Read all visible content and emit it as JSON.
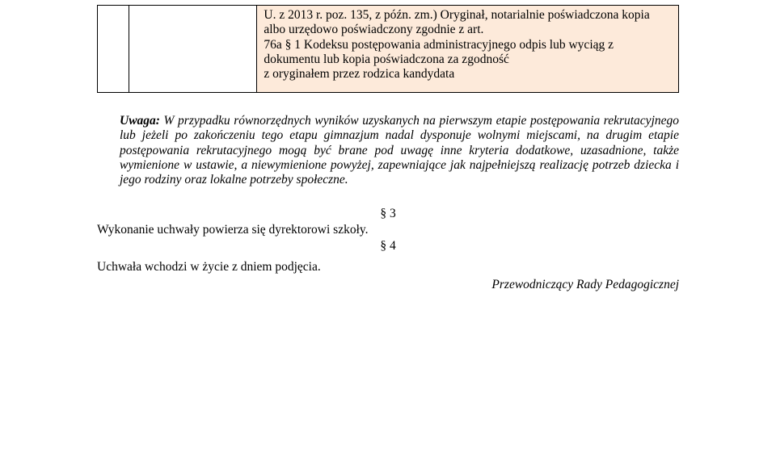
{
  "table": {
    "background_color": "#fdeada",
    "border_color": "#000000",
    "cell_text_p1": "U. z 2013 r. poz. 135, z późn. zm.)  Oryginał, notarialnie poświadczona kopia albo urzędowo poświadczony zgodnie z art.",
    "cell_text_p2": "76a § 1 Kodeksu postępowania administracyjnego odpis lub wyciąg z dokumentu lub kopia poświadczona za zgodność",
    "cell_text_p3": "z oryginałem przez rodzica kandydata"
  },
  "note": {
    "prefix_bold": "Uwaga:",
    "body": " W przypadku równorzędnych wyników uzyskanych na pierwszym etapie postępowania rekrutacyjnego lub jeżeli po zakończeniu tego etapu gimnazjum nadal dysponuje wolnymi miejscami, na drugim etapie postępowania rekrutacyjnego mogą być brane pod uwagę inne kryteria dodatkowe, uzasadnione, także wymienione w ustawie, a niewymienione powyżej, zapewniające jak najpełniejszą realizację potrzeb dziecka i jego rodziny oraz lokalne potrzeby społeczne."
  },
  "section3": {
    "num": "§ 3",
    "text": "Wykonanie uchwały powierza się dyrektorowi szkoły."
  },
  "section4": {
    "num": "§ 4",
    "text": "Uchwała wchodzi w życie z dniem podjęcia."
  },
  "signature": "Przewodniczący Rady Pedagogicznej",
  "style": {
    "font_family": "Times New Roman",
    "body_fontsize_pt": 12,
    "text_color": "#000000",
    "page_bg": "#ffffff"
  }
}
